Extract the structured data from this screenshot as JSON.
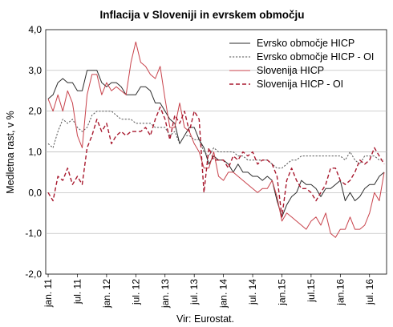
{
  "chart_data": {
    "type": "line",
    "title": "Inflacija v Sloveniji in evrskem območju",
    "ylabel": "Medletna rast, v %",
    "xlabel": "",
    "source": "Vir: Eurostat.",
    "ylim": [
      -2.0,
      4.0
    ],
    "yticks": [
      "4,0",
      "3,0",
      "2,0",
      "1,0",
      "0,0",
      "-1,0",
      "-2,0"
    ],
    "ytick_values": [
      4,
      3,
      2,
      1,
      0,
      -1,
      -2
    ],
    "grid": true,
    "legend_position": "top-right",
    "x_start": "2011-01",
    "x_end": "2016-10",
    "xticks": [
      "jan. 11",
      "jul. 11",
      "jan. 12",
      "jul. 12",
      "jan. 13",
      "jul. 13",
      "jan. 14",
      "jul. 14",
      "jan.15",
      "jul.15",
      "jan.16",
      "jul. 16"
    ],
    "series": [
      {
        "name": "Evrsko območje HICP",
        "color": "#2b2b2b",
        "dash": "solid",
        "values": [
          2.3,
          2.4,
          2.7,
          2.8,
          2.7,
          2.7,
          2.5,
          2.5,
          3.0,
          3.0,
          3.0,
          2.7,
          2.6,
          2.7,
          2.7,
          2.6,
          2.4,
          2.4,
          2.4,
          2.6,
          2.6,
          2.5,
          2.2,
          2.2,
          2.0,
          1.8,
          1.7,
          1.2,
          1.4,
          1.6,
          1.6,
          1.3,
          1.1,
          0.7,
          0.9,
          0.8,
          0.8,
          0.7,
          0.5,
          0.7,
          0.5,
          0.5,
          0.4,
          0.4,
          0.3,
          0.4,
          0.3,
          -0.2,
          -0.6,
          -0.3,
          -0.1,
          0.0,
          0.3,
          0.2,
          0.2,
          0.1,
          -0.1,
          0.1,
          0.1,
          0.2,
          0.3,
          -0.2,
          0.0,
          -0.2,
          -0.1,
          0.1,
          0.2,
          0.2,
          0.4,
          0.5
        ]
      },
      {
        "name": "Evrsko območje HICP - OI",
        "color": "#555555",
        "dash": "dotted",
        "values": [
          1.2,
          1.1,
          1.5,
          1.8,
          1.7,
          1.8,
          1.6,
          1.5,
          1.6,
          1.9,
          2.0,
          2.0,
          2.0,
          2.0,
          1.9,
          1.8,
          1.8,
          1.8,
          1.7,
          1.7,
          1.7,
          1.7,
          1.6,
          1.6,
          1.6,
          1.4,
          1.5,
          1.2,
          1.4,
          1.4,
          1.3,
          1.3,
          1.0,
          0.9,
          1.1,
          1.0,
          1.0,
          1.0,
          1.0,
          0.9,
          0.9,
          0.8,
          0.8,
          0.8,
          0.8,
          0.8,
          0.7,
          0.6,
          0.6,
          0.7,
          0.8,
          0.8,
          0.9,
          0.9,
          0.9,
          0.9,
          0.9,
          0.9,
          0.9,
          0.9,
          0.9,
          0.8,
          1.0,
          0.8,
          0.7,
          0.9,
          0.9,
          0.9,
          0.8,
          0.8
        ]
      },
      {
        "name": "Slovenija HICP",
        "color": "#c8424b",
        "dash": "solid",
        "values": [
          2.3,
          2.0,
          2.4,
          2.0,
          2.5,
          2.2,
          1.4,
          1.1,
          2.4,
          2.9,
          2.9,
          2.4,
          2.7,
          2.5,
          2.6,
          2.5,
          2.4,
          3.2,
          3.7,
          3.2,
          3.1,
          2.9,
          2.8,
          3.1,
          2.3,
          1.6,
          1.6,
          2.2,
          1.6,
          1.5,
          1.2,
          1.0,
          0.6,
          0.6,
          1.0,
          0.4,
          0.3,
          0.5,
          0.5,
          0.4,
          0.3,
          0.2,
          0.1,
          0.0,
          0.1,
          0.1,
          0.3,
          -0.1,
          -0.7,
          -0.5,
          -0.6,
          -0.7,
          -0.8,
          -0.9,
          -0.7,
          -0.6,
          -0.8,
          -0.5,
          -1.0,
          -1.1,
          -0.9,
          -0.9,
          -0.6,
          -0.9,
          -0.9,
          -0.8,
          -0.5,
          0.0,
          -0.2,
          0.5
        ]
      },
      {
        "name": "Slovenija HICP - OI",
        "color": "#a8192e",
        "dash": "dashed",
        "values": [
          0.0,
          -0.2,
          0.4,
          0.3,
          0.6,
          0.2,
          0.4,
          0.2,
          1.1,
          1.4,
          1.8,
          1.5,
          1.7,
          1.2,
          1.4,
          1.5,
          1.4,
          1.5,
          1.5,
          1.5,
          1.6,
          1.4,
          1.8,
          2.1,
          1.8,
          1.3,
          1.9,
          1.7,
          2.0,
          1.5,
          2.0,
          1.8,
          0.0,
          1.1,
          0.8,
          0.8,
          0.8,
          0.6,
          0.9,
          0.8,
          1.0,
          0.9,
          1.0,
          0.7,
          0.8,
          0.8,
          0.7,
          0.4,
          -0.6,
          0.3,
          0.6,
          0.3,
          0.1,
          0.1,
          0.0,
          -0.2,
          0.0,
          0.2,
          0.6,
          0.6,
          0.3,
          0.2,
          0.3,
          0.5,
          0.8,
          0.7,
          0.8,
          1.1,
          0.9,
          0.7
        ]
      }
    ]
  }
}
